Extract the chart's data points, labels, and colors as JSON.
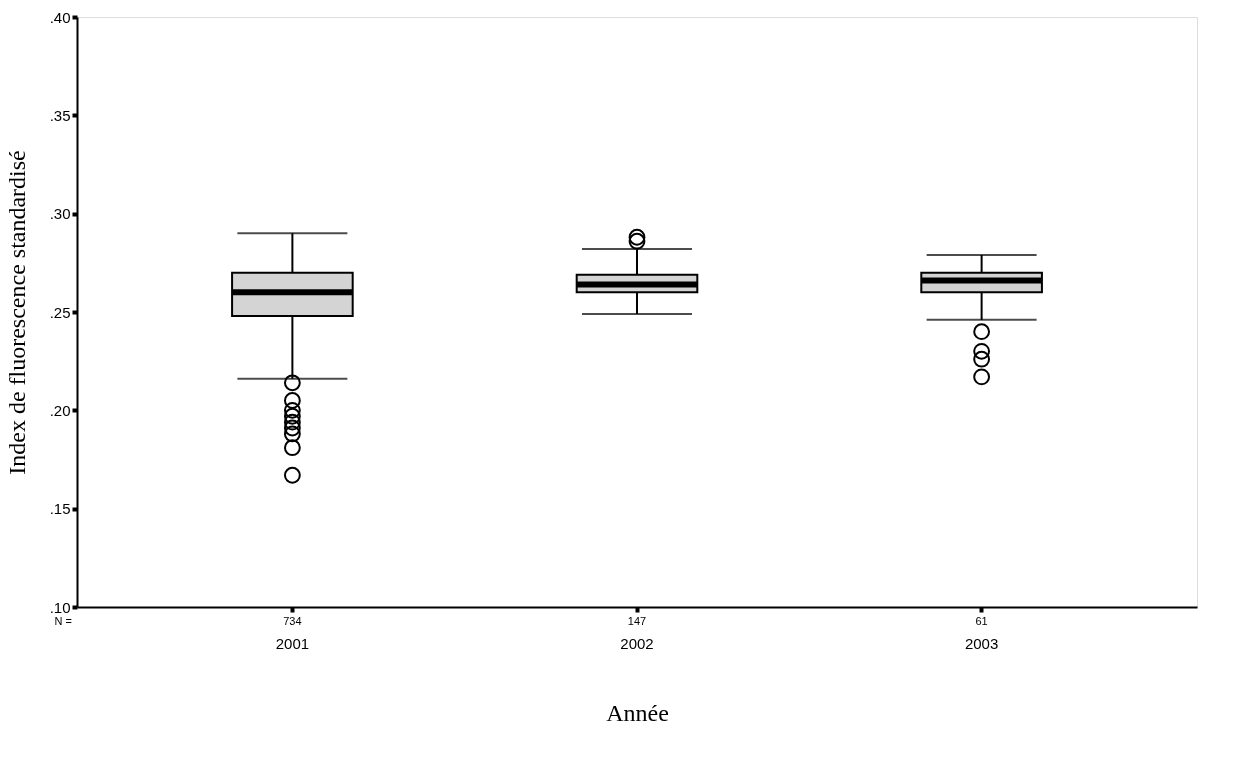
{
  "chart_data": {
    "type": "box",
    "xlabel": "Année",
    "ylabel": "Index de fluorescence standardisé",
    "categories": [
      "2001",
      "2002",
      "2003"
    ],
    "boxes": [
      {
        "low": 0.216,
        "q1": 0.248,
        "median": 0.26,
        "q3": 0.27,
        "high": 0.29,
        "outliers": [
          0.214,
          0.205,
          0.2,
          0.197,
          0.194,
          0.191,
          0.188,
          0.181,
          0.167
        ]
      },
      {
        "low": 0.249,
        "q1": 0.26,
        "median": 0.264,
        "q3": 0.269,
        "high": 0.282,
        "outliers": [
          0.286,
          0.288
        ]
      },
      {
        "low": 0.246,
        "q1": 0.26,
        "median": 0.266,
        "q3": 0.27,
        "high": 0.279,
        "outliers": [
          0.24,
          0.23,
          0.226,
          0.217
        ]
      }
    ],
    "color": "#d4d4d4",
    "ylim": [
      0.1,
      0.4
    ],
    "yticks": [
      {
        "value": 0.1,
        "label": ".10"
      },
      {
        "value": 0.15,
        "label": ".15"
      },
      {
        "value": 0.2,
        "label": ".20"
      },
      {
        "value": 0.25,
        "label": ".25"
      },
      {
        "value": 0.3,
        "label": ".30"
      },
      {
        "value": 0.35,
        "label": ".35"
      },
      {
        "value": 0.4,
        "label": ".40"
      }
    ],
    "annotations": [
      "N =",
      "734",
      "147",
      "61"
    ],
    "grid": false
  }
}
